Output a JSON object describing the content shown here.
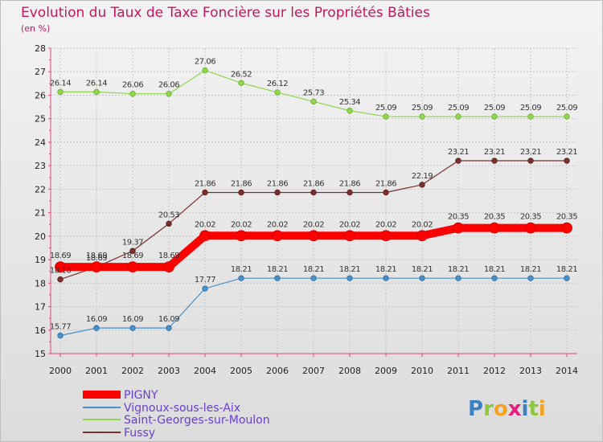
{
  "chart_data": {
    "type": "line",
    "title": "Evolution du Taux de Taxe Foncière sur les Propriétés Bâties",
    "subtitle": "(en %)",
    "xlabel": "",
    "ylabel": "",
    "x": [
      2000,
      2001,
      2002,
      2003,
      2004,
      2005,
      2006,
      2007,
      2008,
      2009,
      2010,
      2011,
      2012,
      2013,
      2014
    ],
    "ylim": [
      15,
      28
    ],
    "yticks": [
      15,
      16,
      17,
      18,
      19,
      20,
      21,
      22,
      23,
      24,
      25,
      26,
      27,
      28
    ],
    "grid": true,
    "legend_position": "bottom-left",
    "series": [
      {
        "name": "PIGNY",
        "color": "#ff0000",
        "values": [
          18.69,
          18.69,
          18.69,
          18.69,
          20.02,
          20.02,
          20.02,
          20.02,
          20.02,
          20.02,
          20.02,
          20.35,
          20.35,
          20.35,
          20.35
        ],
        "labels": [
          "18.69",
          "18.69",
          "18.69",
          "18.69",
          "20.02",
          "20.02",
          "20.02",
          "20.02",
          "20.02",
          "20.02",
          "20.02",
          "20.35",
          "20.35",
          "20.35",
          "20.35"
        ]
      },
      {
        "name": "Vignoux-sous-les-Aix",
        "color": "#4a90c8",
        "values": [
          15.77,
          16.09,
          16.09,
          16.09,
          17.77,
          18.21,
          18.21,
          18.21,
          18.21,
          18.21,
          18.21,
          18.21,
          18.21,
          18.21,
          18.21
        ],
        "labels": [
          "15.77",
          "16.09",
          "16.09",
          "16.09",
          "17.77",
          "18.21",
          "18.21",
          "18.21",
          "18.21",
          "18.21",
          "18.21",
          "18.21",
          "18.21",
          "18.21",
          "18.21"
        ]
      },
      {
        "name": "Saint-Georges-sur-Moulon",
        "color": "#8fd64e",
        "values": [
          26.14,
          26.14,
          26.06,
          26.06,
          27.06,
          26.52,
          26.12,
          25.73,
          25.34,
          25.09,
          25.09,
          25.09,
          25.09,
          25.09,
          25.09
        ],
        "labels": [
          "26.14",
          "26.14",
          "26.06",
          "26.06",
          "27.06",
          "26.52",
          "26.12",
          "25.73",
          "25.34",
          "25.09",
          "25.09",
          "25.09",
          "25.09",
          "25.09",
          "25.09"
        ]
      },
      {
        "name": "Fussy",
        "color": "#7a3030",
        "values": [
          18.16,
          18.69,
          19.37,
          20.53,
          21.86,
          21.86,
          21.86,
          21.86,
          21.86,
          21.86,
          22.19,
          23.21,
          23.21,
          23.21,
          23.21
        ],
        "labels": [
          "18.16",
          "18.69",
          "19.37",
          "20.53",
          "21.86",
          "21.86",
          "21.86",
          "21.86",
          "21.86",
          "21.86",
          "22.19",
          "23.21",
          "23.21",
          "23.21",
          "23.21"
        ]
      }
    ]
  },
  "logo": {
    "text": "Proxiti",
    "letters": [
      {
        "ch": "P",
        "color": "#3b82c4"
      },
      {
        "ch": "r",
        "color": "#8dc63f"
      },
      {
        "ch": "o",
        "color": "#f7a21b"
      },
      {
        "ch": "x",
        "color": "#ec1c7e"
      },
      {
        "ch": "i",
        "color": "#3b82c4"
      },
      {
        "ch": "t",
        "color": "#8dc63f"
      },
      {
        "ch": "i",
        "color": "#f7a21b"
      }
    ]
  }
}
